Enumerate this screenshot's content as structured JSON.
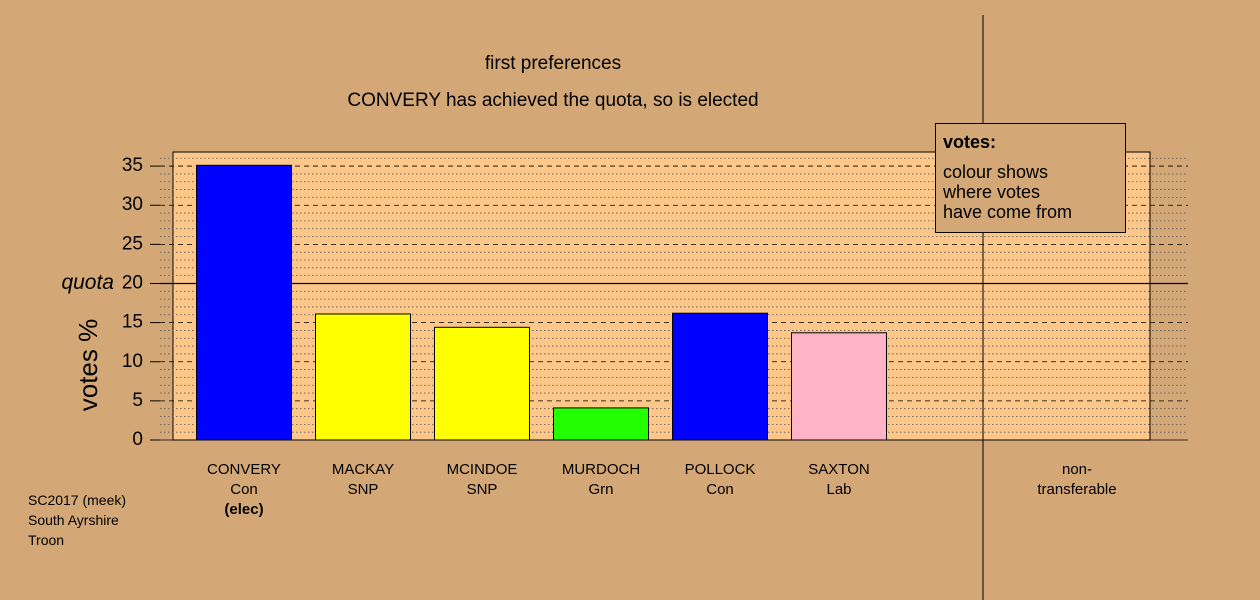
{
  "chart_data": {
    "type": "bar",
    "title": "first preferences",
    "subtitle": "CONVERY has achieved the quota, so is elected",
    "ylabel": "votes %",
    "categories": [
      "CONVERY",
      "MACKAY",
      "MCINDOE",
      "MURDOCH",
      "POLLOCK",
      "SAXTON",
      null,
      "non-\ntransferable"
    ],
    "parties": [
      "Con",
      "SNP",
      "SNP",
      "Grn",
      "Con",
      "Lab",
      null,
      null
    ],
    "notes": [
      "(elec)",
      null,
      null,
      null,
      null,
      null,
      null,
      null
    ],
    "values": [
      35.1,
      16.1,
      14.4,
      4.1,
      16.2,
      13.7,
      null,
      null
    ],
    "colors": [
      "#0000ff",
      "#ffff00",
      "#ffff00",
      "#22ff00",
      "#0000ff",
      "#ffb3c6",
      null,
      null
    ],
    "ylim": [
      0,
      36.8
    ],
    "yticks": [
      0,
      5,
      10,
      15,
      20,
      25,
      30,
      35
    ],
    "grid": true,
    "quota": {
      "value": 20,
      "label": "quota"
    },
    "legend": {
      "title": "votes:",
      "text": "colour shows\nwhere votes\nhave come from"
    },
    "footer": "SC2017 (meek)\nSouth Ayrshire\nTroon"
  }
}
